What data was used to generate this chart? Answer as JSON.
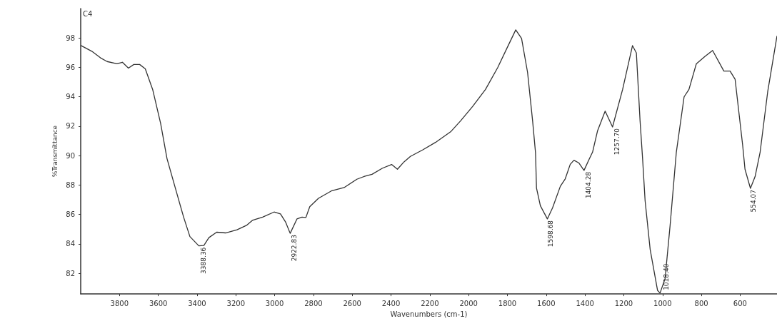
{
  "chart_data": {
    "type": "line",
    "xlabel": "Wavenumbers (cm-1)",
    "ylabel": "%Transmittance",
    "xlim": [
      4000,
      410
    ],
    "ylim": [
      80.6,
      100
    ],
    "xticks": [
      3800,
      3600,
      3400,
      3200,
      3000,
      2800,
      2600,
      2400,
      2200,
      2000,
      1800,
      1600,
      1400,
      1200,
      1000,
      800,
      600
    ],
    "yticks": [
      82,
      84,
      86,
      88,
      90,
      92,
      94,
      96,
      98
    ],
    "grid": false,
    "series": [
      {
        "color": "#333333",
        "x": [
          4000,
          3943,
          3898,
          3864,
          3813,
          3785,
          3754,
          3726,
          3696,
          3667,
          3629,
          3588,
          3555,
          3510,
          3470,
          3437,
          3391,
          3365,
          3339,
          3299,
          3253,
          3194,
          3143,
          3115,
          3062,
          3003,
          2970,
          2944,
          2920,
          2885,
          2859,
          2839,
          2819,
          2774,
          2708,
          2642,
          2576,
          2536,
          2498,
          2444,
          2397,
          2367,
          2333,
          2300,
          2236,
          2171,
          2093,
          2042,
          1979,
          1913,
          1850,
          1799,
          1757,
          1727,
          1696,
          1670,
          1655,
          1650,
          1630,
          1594,
          1567,
          1527,
          1502,
          1476,
          1457,
          1431,
          1405,
          1379,
          1361,
          1335,
          1296,
          1258,
          1206,
          1155,
          1135,
          1116,
          1103,
          1090,
          1064,
          1026,
          1013,
          987,
          961,
          929,
          889,
          864,
          826,
          781,
          742,
          684,
          652,
          626,
          587,
          575,
          547,
          523,
          497,
          458,
          410
        ],
        "values": [
          97.5,
          97.1,
          96.65,
          96.4,
          96.25,
          96.35,
          95.95,
          96.2,
          96.2,
          95.9,
          94.5,
          92.2,
          89.8,
          87.7,
          85.85,
          84.5,
          83.87,
          83.9,
          84.43,
          84.8,
          84.75,
          84.96,
          85.28,
          85.6,
          85.82,
          86.17,
          86.04,
          85.5,
          84.72,
          85.7,
          85.82,
          85.8,
          86.53,
          87.1,
          87.6,
          87.83,
          88.4,
          88.6,
          88.73,
          89.15,
          89.4,
          89.08,
          89.58,
          89.95,
          90.4,
          90.9,
          91.62,
          92.36,
          93.35,
          94.5,
          95.99,
          97.4,
          98.55,
          97.97,
          95.66,
          92.36,
          90.2,
          87.8,
          86.6,
          85.7,
          86.46,
          87.92,
          88.42,
          89.41,
          89.69,
          89.5,
          89.0,
          89.74,
          90.24,
          91.7,
          93.03,
          91.95,
          94.5,
          97.48,
          96.98,
          92.36,
          89.8,
          86.93,
          83.63,
          80.85,
          80.66,
          81.65,
          85.28,
          90.24,
          94.0,
          94.5,
          96.24,
          96.75,
          97.15,
          95.75,
          95.75,
          95.19,
          90.7,
          89.08,
          87.78,
          88.58,
          90.24,
          94.34,
          98.14
        ]
      }
    ],
    "annotations": [
      "C4",
      {
        "text": "3388.36",
        "x": 3388.36,
        "y": 83.87
      },
      {
        "text": "2922.83",
        "x": 2922.83,
        "y": 84.72
      },
      {
        "text": "1598.68",
        "x": 1598.68,
        "y": 85.7
      },
      {
        "text": "1404.28",
        "x": 1404.28,
        "y": 89.0
      },
      {
        "text": "1257.70",
        "x": 1257.7,
        "y": 91.95
      },
      {
        "text": "1018.40",
        "x": 1018.4,
        "y": 80.66
      },
      {
        "text": "554.07",
        "x": 554.07,
        "y": 87.78
      }
    ]
  }
}
